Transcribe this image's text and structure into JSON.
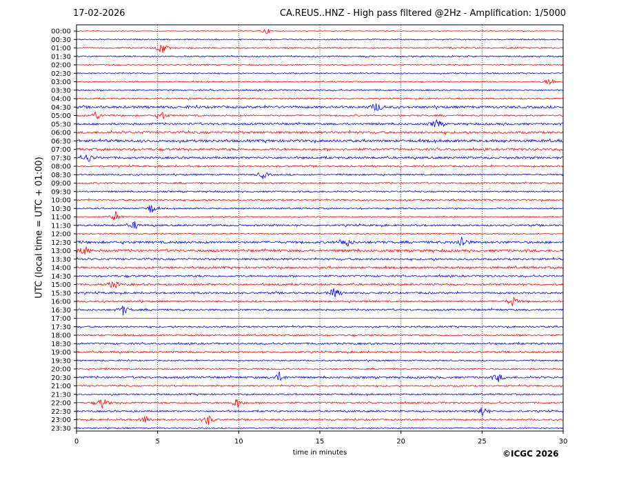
{
  "header": {
    "date": "17-02-2026",
    "title": "CA.REUS..HNZ - High pass filtered @2Hz - Amplification: 1/5000"
  },
  "footer": {
    "copyright": "©ICGC 2026"
  },
  "colors": {
    "trace_a": "#ff0000",
    "trace_b": "#0000ff",
    "grid": "#000000"
  },
  "chart_data": {
    "type": "line",
    "title": "CA.REUS..HNZ - High pass filtered @2Hz - Amplification: 1/5000",
    "xlabel": "time in minutes",
    "ylabel": "UTC (local time = UTC + 01:00)",
    "xlim": [
      0,
      30
    ],
    "xticks": [
      "0",
      "5",
      "10",
      "15",
      "20",
      "25",
      "30"
    ],
    "grid": "vertical dotted lines at 5, 10, 15, 20, 25 minutes",
    "series_colors": "alternating red and blue per row",
    "rows": [
      "00:00",
      "00:30",
      "01:00",
      "01:30",
      "02:00",
      "02:30",
      "03:00",
      "03:30",
      "04:00",
      "04:30",
      "05:00",
      "05:30",
      "06:00",
      "06:30",
      "07:00",
      "07:30",
      "08:00",
      "08:30",
      "09:00",
      "09:30",
      "10:00",
      "10:30",
      "11:00",
      "11:30",
      "12:00",
      "12:30",
      "13:00",
      "13:30",
      "14:00",
      "14:30",
      "15:00",
      "15:30",
      "16:00",
      "16:30",
      "17:00",
      "17:30",
      "18:00",
      "18:30",
      "19:00",
      "19:30",
      "20:00",
      "20:30",
      "21:00",
      "21:30",
      "22:00",
      "22:30",
      "23:00",
      "23:30"
    ],
    "row_colors": [
      "red",
      "blue",
      "red",
      "blue",
      "red",
      "blue",
      "red",
      "blue",
      "red",
      "blue",
      "red",
      "blue",
      "red",
      "blue",
      "red",
      "blue",
      "red",
      "blue",
      "red",
      "blue",
      "red",
      "blue",
      "red",
      "blue",
      "red",
      "blue",
      "red",
      "blue",
      "red",
      "blue",
      "red",
      "blue",
      "red",
      "blue",
      "red",
      "blue",
      "red",
      "blue",
      "red",
      "blue",
      "red",
      "blue",
      "red",
      "blue",
      "red",
      "blue",
      "red",
      "blue"
    ],
    "noise_level": [
      0.2,
      0.35,
      0.4,
      0.4,
      0.3,
      0.35,
      0.35,
      0.4,
      0.4,
      0.7,
      0.45,
      0.6,
      0.7,
      0.75,
      0.7,
      0.65,
      0.5,
      0.45,
      0.45,
      0.45,
      0.5,
      0.4,
      0.35,
      0.55,
      0.35,
      0.7,
      0.7,
      0.6,
      0.6,
      0.55,
      0.55,
      0.55,
      0.5,
      0.55,
      0.15,
      0.5,
      0.45,
      0.55,
      0.5,
      0.4,
      0.45,
      0.6,
      0.45,
      0.45,
      0.5,
      0.5,
      0.5,
      0.35
    ],
    "events": [
      {
        "row": "00:00",
        "minute": 11.7,
        "size": 0.8
      },
      {
        "row": "01:00",
        "minute": 5.3,
        "size": 1.4
      },
      {
        "row": "03:00",
        "minute": 29.2,
        "size": 1.2
      },
      {
        "row": "04:30",
        "minute": 18.5,
        "size": 1.2
      },
      {
        "row": "05:00",
        "minute": 1.2,
        "size": 1.2
      },
      {
        "row": "05:00",
        "minute": 5.3,
        "size": 1.0
      },
      {
        "row": "05:30",
        "minute": 22.2,
        "size": 1.2
      },
      {
        "row": "07:30",
        "minute": 0.7,
        "size": 1.2
      },
      {
        "row": "08:30",
        "minute": 11.5,
        "size": 1.0
      },
      {
        "row": "10:30",
        "minute": 4.6,
        "size": 1.4
      },
      {
        "row": "11:00",
        "minute": 2.4,
        "size": 1.4
      },
      {
        "row": "11:30",
        "minute": 3.6,
        "size": 1.0
      },
      {
        "row": "12:30",
        "minute": 16.6,
        "size": 1.4
      },
      {
        "row": "12:30",
        "minute": 23.8,
        "size": 1.4
      },
      {
        "row": "13:00",
        "minute": 0.5,
        "size": 1.3
      },
      {
        "row": "15:00",
        "minute": 2.3,
        "size": 1.2
      },
      {
        "row": "15:30",
        "minute": 15.9,
        "size": 1.4
      },
      {
        "row": "16:00",
        "minute": 26.9,
        "size": 1.3
      },
      {
        "row": "16:30",
        "minute": 2.9,
        "size": 1.3
      },
      {
        "row": "20:30",
        "minute": 12.5,
        "size": 1.2
      },
      {
        "row": "20:30",
        "minute": 26.0,
        "size": 1.1
      },
      {
        "row": "22:00",
        "minute": 1.6,
        "size": 1.4
      },
      {
        "row": "22:00",
        "minute": 9.9,
        "size": 1.4
      },
      {
        "row": "22:30",
        "minute": 25.0,
        "size": 1.4
      },
      {
        "row": "23:00",
        "minute": 4.3,
        "size": 1.2
      },
      {
        "row": "23:00",
        "minute": 8.1,
        "size": 1.4
      }
    ]
  }
}
